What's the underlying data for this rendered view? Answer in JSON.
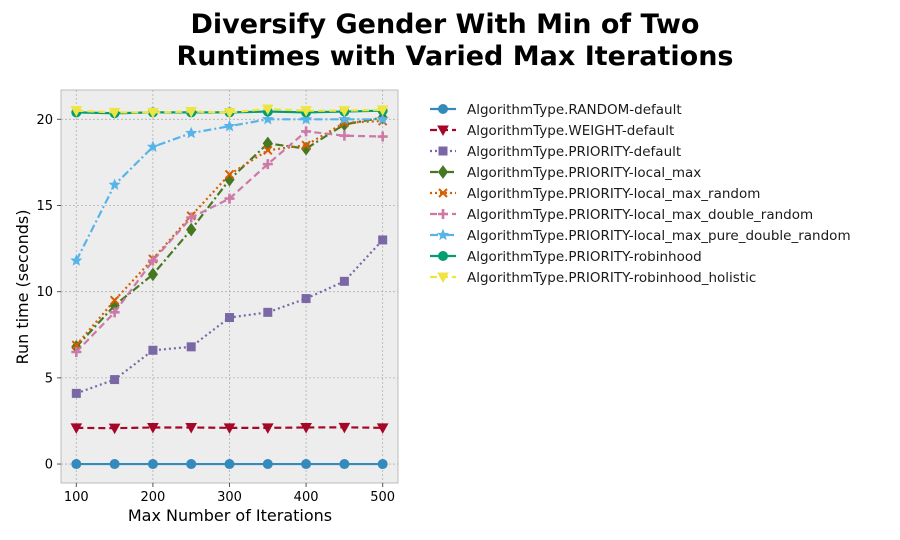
{
  "chart_data": {
    "type": "line",
    "title_lines": [
      "Diversify Gender With Min of Two",
      "Runtimes with Varied Max Iterations"
    ],
    "xlabel": "Max Number of Iterations",
    "ylabel": "Run time (seconds)",
    "x": [
      100,
      150,
      200,
      250,
      300,
      350,
      400,
      450,
      500
    ],
    "xlim": [
      80,
      520
    ],
    "ylim": [
      -1.1,
      21.7
    ],
    "xticks": [
      100,
      200,
      300,
      400,
      500
    ],
    "yticks": [
      0,
      5,
      10,
      15,
      20
    ],
    "grid": true,
    "legend_position": "outside-right",
    "background": "#ededed",
    "series": [
      {
        "name": "AlgorithmType.RANDOM-default",
        "color": "#348abd",
        "dash": "solid",
        "marker": "circle",
        "values": [
          0.0,
          0.0,
          0.0,
          0.0,
          0.0,
          0.0,
          0.0,
          0.0,
          0.0
        ]
      },
      {
        "name": "AlgorithmType.WEIGHT-default",
        "color": "#a60628",
        "dash": "dashed",
        "marker": "triangle-down",
        "values": [
          2.1,
          2.08,
          2.12,
          2.12,
          2.1,
          2.1,
          2.12,
          2.13,
          2.1
        ]
      },
      {
        "name": "AlgorithmType.PRIORITY-default",
        "color": "#7a68a6",
        "dash": "dotted",
        "marker": "square",
        "values": [
          4.1,
          4.9,
          6.6,
          6.8,
          8.5,
          8.8,
          9.6,
          10.6,
          13.0
        ]
      },
      {
        "name": "AlgorithmType.PRIORITY-local_max",
        "color": "#467821",
        "dash": "dashdot",
        "marker": "diamond",
        "values": [
          6.8,
          9.2,
          11.0,
          13.6,
          16.5,
          18.6,
          18.3,
          19.7,
          20.1
        ]
      },
      {
        "name": "AlgorithmType.PRIORITY-local_max_random",
        "color": "#d55e00",
        "dash": "dotted",
        "marker": "x",
        "values": [
          6.9,
          9.5,
          11.9,
          14.4,
          16.8,
          18.2,
          18.5,
          19.8,
          19.9
        ]
      },
      {
        "name": "AlgorithmType.PRIORITY-local_max_double_random",
        "color": "#cc79a7",
        "dash": "dashed",
        "marker": "plus",
        "values": [
          6.5,
          8.8,
          11.8,
          14.3,
          15.4,
          17.4,
          19.3,
          19.05,
          19.0
        ]
      },
      {
        "name": "AlgorithmType.PRIORITY-local_max_pure_double_random",
        "color": "#56b4e9",
        "dash": "dashdot",
        "marker": "star",
        "values": [
          11.8,
          16.2,
          18.4,
          19.2,
          19.6,
          20.0,
          20.0,
          20.0,
          20.0
        ]
      },
      {
        "name": "AlgorithmType.PRIORITY-robinhood",
        "color": "#009e73",
        "dash": "solid",
        "marker": "circle",
        "values": [
          20.4,
          20.35,
          20.4,
          20.4,
          20.4,
          20.45,
          20.4,
          20.45,
          20.5
        ]
      },
      {
        "name": "AlgorithmType.PRIORITY-robinhood_holistic",
        "color": "#f0e442",
        "dash": "dashed",
        "marker": "triangle-down",
        "values": [
          20.5,
          20.4,
          20.4,
          20.45,
          20.4,
          20.6,
          20.5,
          20.5,
          20.55
        ]
      }
    ]
  }
}
